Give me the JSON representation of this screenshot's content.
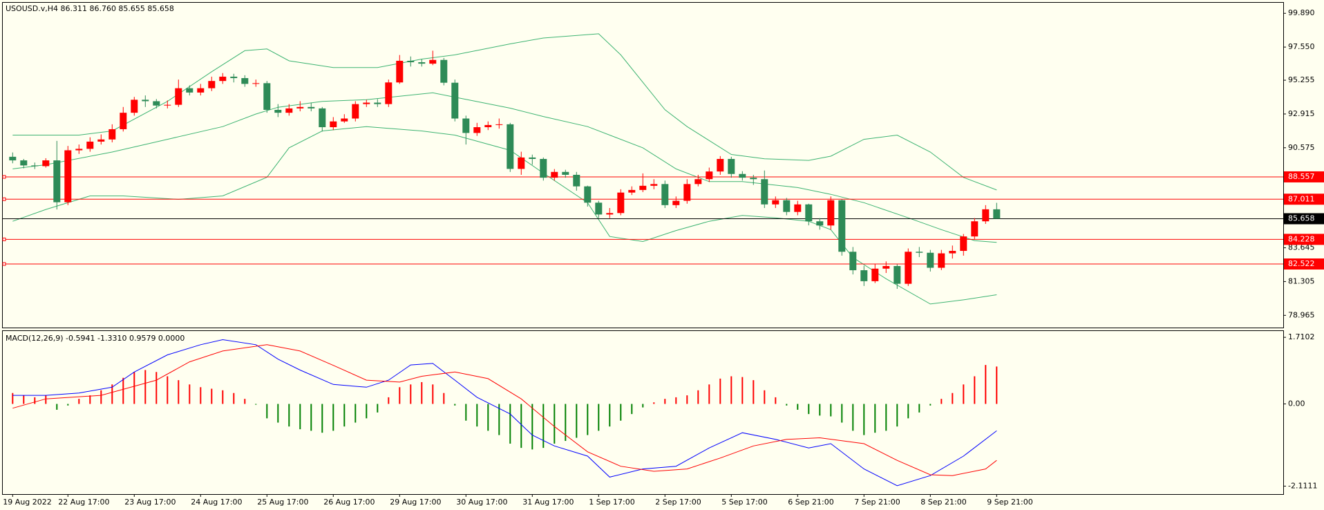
{
  "chart_data": [
    {
      "type": "candlestick",
      "title": "USOUSD.v,H4  86.311 86.760 85.655 85.658",
      "categories": [
        "19 Aug 2022",
        null,
        null,
        null,
        null,
        "22 Aug 17:00",
        null,
        null,
        null,
        null,
        null,
        "23 Aug 17:00",
        null,
        null,
        null,
        null,
        null,
        "24 Aug 17:00",
        null,
        null,
        null,
        null,
        null,
        "25 Aug 17:00",
        null,
        null,
        null,
        null,
        null,
        "26 Aug 17:00",
        null,
        null,
        null,
        null,
        null,
        "29 Aug 17:00",
        null,
        null,
        null,
        null,
        null,
        "30 Aug 17:00",
        null,
        null,
        null,
        null,
        null,
        "31 Aug 17:00",
        null,
        null,
        null,
        null,
        null,
        "1 Sep 17:00",
        null,
        null,
        null,
        null,
        null,
        "2 Sep 17:00",
        null,
        null,
        null,
        null,
        null,
        "5 Sep 17:00",
        null,
        null,
        null,
        null,
        null,
        "6 Sep 21:00",
        null,
        null,
        null,
        null,
        null,
        "7 Sep 21:00",
        null,
        null,
        null,
        null,
        null,
        "8 Sep 21:00",
        null,
        null,
        null,
        null,
        null,
        "9 Sep 21:00"
      ],
      "open": [
        89.95,
        89.7,
        89.35,
        89.3,
        89.7,
        86.8,
        90.4,
        90.5,
        91.0,
        91.15,
        91.86,
        93.0,
        93.9,
        93.8,
        93.5,
        93.55,
        94.7,
        94.4,
        94.7,
        95.2,
        95.5,
        95.4,
        95.0,
        95.05,
        93.2,
        93.0,
        93.3,
        93.4,
        93.3,
        92.0,
        92.4,
        92.6,
        93.6,
        93.7,
        93.6,
        95.1,
        96.6,
        96.5,
        96.4,
        96.66,
        95.08,
        92.6,
        91.6,
        92.0,
        92.15,
        92.2,
        89.11,
        89.9,
        89.8,
        88.5,
        88.9,
        88.7,
        87.9,
        86.77,
        85.95,
        86.05,
        87.47,
        87.65,
        87.94,
        88.06,
        86.6,
        86.9,
        88.06,
        88.4,
        88.93,
        89.8,
        88.76,
        88.5,
        88.4,
        86.65,
        86.94,
        86.13,
        86.65,
        85.48,
        85.19,
        86.94,
        83.37,
        82.09,
        81.33,
        82.2,
        82.38,
        81.15,
        83.37,
        83.3,
        82.26,
        83.26,
        83.43,
        84.43,
        85.48,
        86.311
      ],
      "high": [
        90.25,
        89.8,
        89.55,
        89.85,
        91.05,
        90.7,
        90.8,
        91.3,
        91.5,
        92.2,
        93.4,
        94.1,
        94.2,
        93.95,
        93.85,
        95.3,
        94.9,
        95.0,
        95.5,
        95.75,
        95.7,
        95.6,
        95.3,
        95.2,
        93.6,
        93.6,
        93.8,
        93.7,
        93.4,
        92.7,
        92.9,
        93.8,
        93.9,
        93.95,
        95.3,
        97.0,
        96.9,
        96.7,
        97.3,
        96.8,
        95.3,
        92.8,
        92.3,
        92.4,
        92.6,
        92.3,
        90.3,
        90.1,
        89.9,
        89.1,
        89.05,
        88.9,
        87.95,
        86.9,
        86.4,
        87.7,
        87.9,
        88.8,
        88.4,
        88.3,
        87.2,
        88.4,
        88.7,
        89.2,
        90.0,
        89.95,
        88.95,
        88.7,
        89.0,
        87.2,
        87.1,
        86.9,
        86.7,
        85.7,
        87.2,
        87.0,
        83.7,
        82.4,
        82.5,
        82.7,
        82.5,
        83.6,
        83.7,
        83.5,
        83.5,
        83.8,
        84.6,
        85.7,
        86.6,
        86.76
      ],
      "low": [
        89.5,
        89.15,
        89.1,
        89.2,
        86.3,
        86.6,
        90.15,
        90.3,
        90.8,
        90.95,
        91.7,
        92.8,
        93.4,
        93.3,
        93.3,
        93.4,
        94.2,
        94.2,
        94.5,
        95.0,
        95.1,
        94.8,
        94.8,
        93.0,
        92.7,
        92.8,
        93.1,
        93.1,
        91.7,
        91.8,
        92.3,
        92.4,
        93.4,
        93.4,
        93.4,
        95.0,
        96.2,
        96.2,
        96.3,
        94.9,
        92.4,
        90.8,
        91.4,
        91.8,
        91.9,
        88.9,
        88.7,
        89.4,
        88.3,
        88.3,
        88.5,
        87.6,
        86.5,
        85.7,
        85.7,
        85.9,
        87.3,
        87.5,
        87.7,
        86.4,
        86.4,
        86.7,
        87.9,
        88.2,
        88.7,
        88.5,
        88.3,
        88.0,
        86.4,
        86.4,
        85.9,
        85.9,
        85.2,
        84.9,
        84.9,
        83.1,
        81.8,
        81.0,
        81.2,
        81.9,
        80.8,
        81.0,
        83.0,
        82.0,
        82.1,
        82.9,
        83.1,
        84.2,
        85.3,
        85.655
      ],
      "close": [
        89.7,
        89.35,
        89.3,
        89.7,
        86.8,
        90.4,
        90.5,
        91.0,
        91.15,
        91.86,
        93.0,
        93.9,
        93.8,
        93.5,
        93.55,
        94.7,
        94.4,
        94.7,
        95.2,
        95.5,
        95.4,
        95.0,
        95.05,
        93.2,
        93.0,
        93.3,
        93.4,
        93.3,
        92.0,
        92.4,
        92.6,
        93.6,
        93.7,
        93.6,
        95.1,
        96.6,
        96.5,
        96.4,
        96.66,
        95.08,
        92.6,
        91.6,
        92.0,
        92.15,
        92.2,
        89.11,
        89.9,
        89.8,
        88.5,
        88.9,
        88.7,
        87.9,
        86.77,
        85.95,
        86.05,
        87.47,
        87.65,
        87.94,
        88.06,
        86.6,
        86.9,
        88.06,
        88.4,
        88.93,
        89.8,
        88.76,
        88.5,
        88.4,
        86.65,
        86.94,
        86.13,
        86.65,
        85.48,
        85.19,
        86.94,
        83.37,
        82.09,
        81.33,
        82.2,
        82.38,
        81.15,
        83.37,
        83.3,
        82.26,
        83.26,
        83.43,
        84.43,
        85.48,
        86.311,
        85.658
      ],
      "up_color": "#ff0000",
      "down_color": "#2e8b57",
      "bands": [
        {
          "color": "#3cb371",
          "x": [
            0,
            6,
            9,
            14,
            18,
            21,
            23,
            25,
            29,
            33,
            37,
            40,
            45,
            48,
            53,
            55,
            59,
            61,
            65,
            68,
            72,
            74,
            77,
            80,
            83,
            86,
            89
          ],
          "values": [
            91.45,
            91.45,
            91.74,
            93.79,
            95.84,
            97.3,
            97.42,
            96.6,
            96.13,
            96.13,
            96.72,
            97.01,
            97.77,
            98.18,
            98.47,
            97.01,
            93.21,
            92.04,
            90.11,
            89.81,
            89.7,
            89.99,
            91.16,
            91.45,
            90.28,
            88.52,
            87.65
          ]
        },
        {
          "color": "#3cb371",
          "x": [
            0,
            3,
            9,
            14,
            19,
            22,
            24,
            28,
            32,
            38,
            40,
            45,
            48,
            52,
            57,
            60,
            63,
            66,
            71,
            74,
            77,
            81,
            84,
            87,
            89
          ],
          "values": [
            89.11,
            89.4,
            90.28,
            91.16,
            92.04,
            92.91,
            93.38,
            93.79,
            93.91,
            94.38,
            94.08,
            93.32,
            92.74,
            92.04,
            90.57,
            89.11,
            88.23,
            88.23,
            87.82,
            87.35,
            86.77,
            85.72,
            84.9,
            84.14,
            84.02
          ]
        },
        {
          "color": "#3cb371",
          "x": [
            0,
            3,
            7,
            10,
            15,
            19,
            23,
            25,
            28,
            32,
            37,
            40,
            45,
            48,
            52,
            54,
            57,
            60,
            63,
            66,
            69,
            72,
            74,
            76,
            79,
            83,
            86,
            89
          ],
          "values": [
            85.48,
            86.3,
            87.24,
            87.24,
            87.0,
            87.24,
            88.53,
            90.57,
            91.74,
            92.04,
            91.74,
            91.45,
            90.4,
            88.82,
            86.77,
            84.43,
            84.08,
            84.84,
            85.48,
            85.89,
            85.72,
            85.48,
            84.9,
            82.97,
            81.5,
            79.75,
            80.04,
            80.39
          ]
        }
      ],
      "levels": [
        {
          "value": 88.557,
          "color": "#ff0000"
        },
        {
          "value": 87.011,
          "color": "#ff0000"
        },
        {
          "value": 84.228,
          "color": "#ff0000"
        },
        {
          "value": 82.522,
          "color": "#ff0000"
        }
      ],
      "current_price": {
        "value": 85.658,
        "color": "#000000"
      },
      "ylim": [
        78.07,
        100.62
      ],
      "yticks": [
        {
          "value": 99.89,
          "label": "99.890"
        },
        {
          "value": 97.55,
          "label": "97.550"
        },
        95.255,
        92.915,
        90.575,
        83.645,
        81.305,
        78.965
      ]
    },
    {
      "type": "macd",
      "title": "MACD(12,26,9) -0.5941 -1.3310 0.9579 0.0000",
      "histogram": {
        "up_color": "#ff0000",
        "down_color": "#008000",
        "values": [
          0.28,
          0.22,
          0.17,
          0.22,
          -0.15,
          -0.04,
          0.13,
          0.22,
          0.35,
          0.5,
          0.67,
          0.82,
          0.87,
          0.82,
          0.71,
          0.61,
          0.5,
          0.43,
          0.39,
          0.35,
          0.28,
          0.13,
          -0.02,
          -0.37,
          -0.48,
          -0.58,
          -0.65,
          -0.69,
          -0.74,
          -0.69,
          -0.58,
          -0.48,
          -0.37,
          -0.22,
          0.17,
          0.43,
          0.5,
          0.56,
          0.5,
          0.28,
          -0.04,
          -0.43,
          -0.58,
          -0.69,
          -0.8,
          -1.02,
          -1.13,
          -1.17,
          -1.13,
          -1.02,
          -0.95,
          -0.87,
          -0.8,
          -0.69,
          -0.58,
          -0.43,
          -0.26,
          -0.09,
          0.04,
          0.13,
          0.17,
          0.22,
          0.35,
          0.5,
          0.65,
          0.71,
          0.69,
          0.61,
          0.35,
          0.17,
          -0.04,
          -0.15,
          -0.26,
          -0.3,
          -0.32,
          -0.48,
          -0.69,
          -0.8,
          -0.74,
          -0.69,
          -0.58,
          -0.37,
          -0.22,
          -0.04,
          0.13,
          0.28,
          0.5,
          0.71,
          1.0,
          0.96
        ]
      },
      "lines": [
        {
          "color": "#0000ff",
          "x": [
            0,
            3,
            6,
            9,
            11,
            14,
            17,
            19,
            22,
            24,
            26,
            29,
            32,
            34,
            36,
            38,
            40,
            42,
            45,
            47,
            49,
            52,
            54,
            57,
            60,
            63,
            66,
            69,
            72,
            74,
            77,
            80,
            83,
            86,
            89
          ],
          "values": [
            0.22,
            0.22,
            0.28,
            0.43,
            0.82,
            1.26,
            1.52,
            1.65,
            1.52,
            1.15,
            0.87,
            0.5,
            0.43,
            0.61,
            1.0,
            1.04,
            0.61,
            0.17,
            -0.26,
            -0.8,
            -1.08,
            -1.34,
            -1.88,
            -1.67,
            -1.6,
            -1.13,
            -0.74,
            -0.91,
            -1.13,
            -1.02,
            -1.67,
            -2.1,
            -1.84,
            -1.34,
            -0.69
          ]
        },
        {
          "color": "#ff0000",
          "x": [
            0,
            3,
            8,
            13,
            16,
            19,
            23,
            26,
            29,
            32,
            35,
            37,
            40,
            43,
            46,
            49,
            52,
            55,
            58,
            61,
            64,
            67,
            70,
            73,
            77,
            80,
            83,
            85,
            88,
            89
          ],
          "values": [
            -0.11,
            0.13,
            0.22,
            0.61,
            1.08,
            1.36,
            1.52,
            1.36,
            0.99,
            0.61,
            0.56,
            0.71,
            0.82,
            0.65,
            0.13,
            -0.58,
            -1.23,
            -1.6,
            -1.73,
            -1.67,
            -1.39,
            -1.08,
            -0.91,
            -0.87,
            -1.02,
            -1.45,
            -1.82,
            -1.84,
            -1.67,
            -1.45
          ]
        }
      ],
      "ylim": [
        -2.316,
        1.872
      ],
      "yticks": [
        1.7102,
        {
          "value": 0,
          "label": "0.00"
        },
        -2.1111
      ]
    }
  ]
}
